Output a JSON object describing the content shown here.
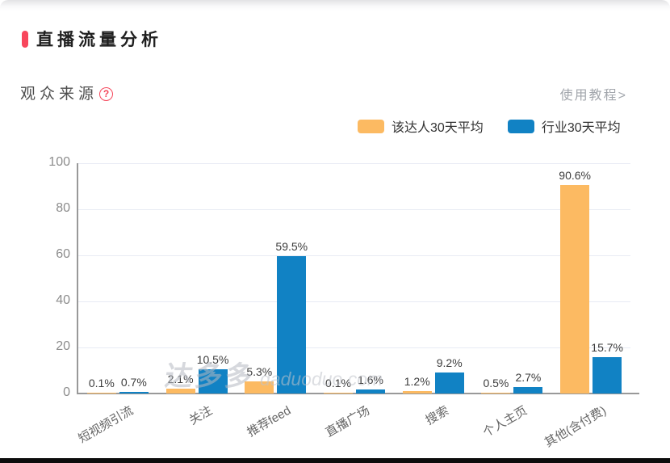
{
  "header": {
    "title": "直播流量分析"
  },
  "section": {
    "title": "观众来源",
    "help_glyph": "?",
    "tutorial_link": "使用教程>"
  },
  "chart_data": {
    "type": "bar",
    "title": "观众来源",
    "categories": [
      "短视频引流",
      "关注",
      "推荐feed",
      "直播广场",
      "搜索",
      "个人主页",
      "其他(含付费)"
    ],
    "series": [
      {
        "name": "该达人30天平均",
        "color": "#FCBA62",
        "values": [
          0.1,
          2.1,
          5.3,
          0.1,
          1.2,
          0.5,
          90.6
        ]
      },
      {
        "name": "行业30天平均",
        "color": "#1182C4",
        "values": [
          0.7,
          10.5,
          59.5,
          1.6,
          9.2,
          2.7,
          15.7
        ]
      }
    ],
    "unit": "%",
    "xlabel": "",
    "ylabel": "",
    "ylim": [
      0,
      100
    ],
    "y_ticks": [
      0,
      20,
      40,
      60,
      80,
      100
    ],
    "grid": true,
    "legend_position": "top-right",
    "bar_labels_visible": true
  },
  "watermark": {
    "cn": "达多多",
    "en": "daduoduo.com"
  },
  "colors": {
    "accent_red": "#F8465C",
    "bar_orange": "#FCBA62",
    "bar_blue": "#1182C4",
    "gridline": "#E8EBF4",
    "axis_line": "#999999",
    "y_tick_text": "#8C8C8C",
    "x_tick_text": "#666666",
    "value_label_text": "#3D3D3D"
  }
}
